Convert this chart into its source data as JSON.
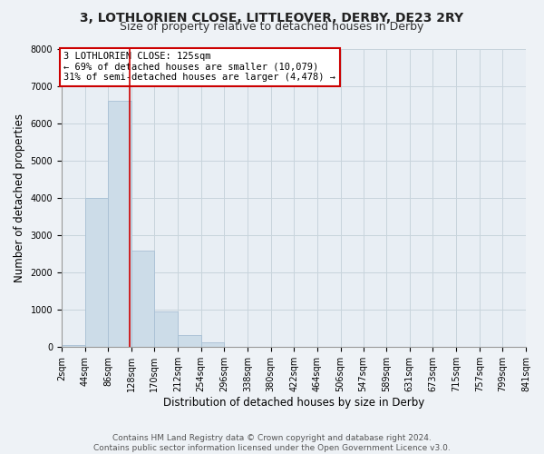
{
  "title": "3, LOTHLORIEN CLOSE, LITTLEOVER, DERBY, DE23 2RY",
  "subtitle": "Size of property relative to detached houses in Derby",
  "xlabel": "Distribution of detached houses by size in Derby",
  "ylabel": "Number of detached properties",
  "bin_edges": [
    2,
    44,
    86,
    128,
    170,
    212,
    254,
    296,
    338,
    380,
    422,
    464,
    506,
    547,
    589,
    631,
    673,
    715,
    757,
    799,
    841
  ],
  "bar_heights": [
    60,
    4000,
    6600,
    2600,
    960,
    330,
    130,
    10,
    0,
    0,
    0,
    0,
    0,
    0,
    0,
    0,
    0,
    0,
    0,
    0
  ],
  "bar_color": "#ccdce8",
  "bar_edgecolor": "#a8c0d4",
  "vline_x": 125,
  "vline_color": "#cc0000",
  "ylim": [
    0,
    8000
  ],
  "yticks": [
    0,
    1000,
    2000,
    3000,
    4000,
    5000,
    6000,
    7000,
    8000
  ],
  "annotation_box_text": "3 LOTHLORIEN CLOSE: 125sqm\n← 69% of detached houses are smaller (10,079)\n31% of semi-detached houses are larger (4,478) →",
  "annotation_box_color": "#ffffff",
  "annotation_box_edgecolor": "#cc0000",
  "footer_text": "Contains HM Land Registry data © Crown copyright and database right 2024.\nContains public sector information licensed under the Open Government Licence v3.0.",
  "background_color": "#eef2f6",
  "plot_background_color": "#e8eef4",
  "grid_color": "#c8d4dc",
  "title_fontsize": 10,
  "subtitle_fontsize": 9,
  "label_fontsize": 8.5,
  "tick_label_fontsize": 7,
  "footer_fontsize": 6.5,
  "annotation_fontsize": 7.5
}
